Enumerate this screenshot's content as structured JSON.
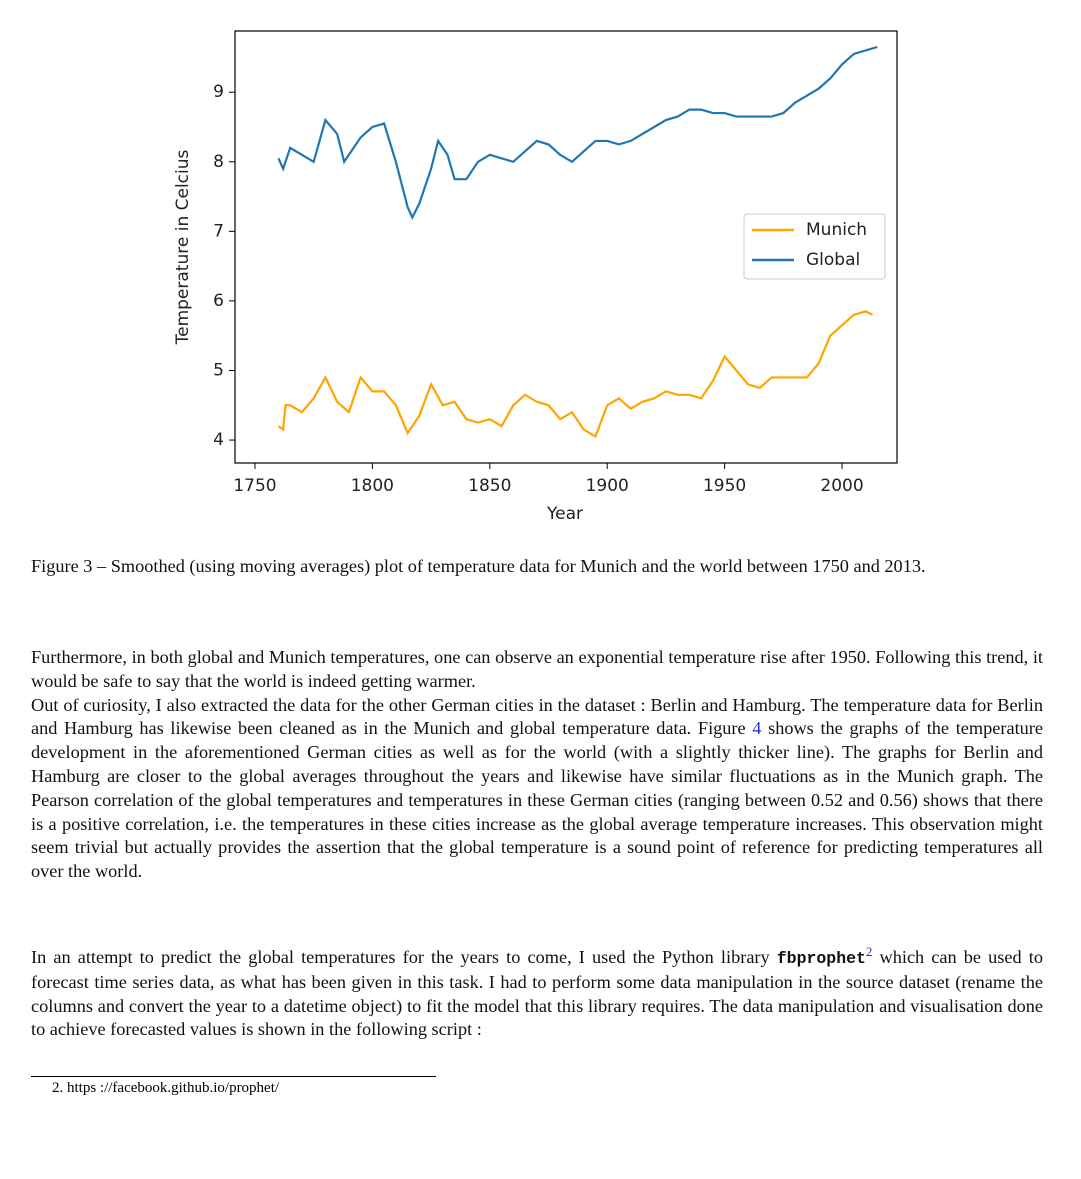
{
  "chart_data": {
    "type": "line",
    "x_label": "Year",
    "y_label": "Temperature in Celcius",
    "xlim": [
      1741.5,
      2023.4
    ],
    "ylim": [
      3.67,
      9.88
    ],
    "xticks": [
      1750,
      1800,
      1850,
      1900,
      1950,
      2000
    ],
    "yticks": [
      4,
      5,
      6,
      7,
      8,
      9
    ],
    "legend": "upper right",
    "series": [
      {
        "name": "Munich",
        "color": "#ffa500",
        "x": [
          1760,
          1762,
          1763,
          1765,
          1770,
          1775,
          1780,
          1785,
          1790,
          1795,
          1800,
          1805,
          1810,
          1815,
          1820,
          1825,
          1830,
          1835,
          1840,
          1845,
          1850,
          1855,
          1860,
          1865,
          1870,
          1875,
          1880,
          1885,
          1890,
          1895,
          1900,
          1905,
          1910,
          1915,
          1920,
          1925,
          1930,
          1935,
          1940,
          1945,
          1950,
          1955,
          1960,
          1965,
          1970,
          1975,
          1980,
          1985,
          1990,
          1995,
          2000,
          2005,
          2010,
          2013
        ],
        "values": [
          4.2,
          4.15,
          4.5,
          4.5,
          4.4,
          4.6,
          4.9,
          4.55,
          4.4,
          4.9,
          4.7,
          4.7,
          4.5,
          4.1,
          4.35,
          4.8,
          4.5,
          4.55,
          4.3,
          4.25,
          4.3,
          4.2,
          4.5,
          4.65,
          4.55,
          4.5,
          4.3,
          4.4,
          4.15,
          4.05,
          4.5,
          4.6,
          4.45,
          4.55,
          4.6,
          4.7,
          4.65,
          4.65,
          4.6,
          4.85,
          5.2,
          5.0,
          4.8,
          4.75,
          4.9,
          4.9,
          4.9,
          4.9,
          5.1,
          5.5,
          5.65,
          5.8,
          5.85,
          5.8
        ]
      },
      {
        "name": "Global",
        "color": "#1f77b4",
        "x": [
          1760,
          1762,
          1765,
          1770,
          1775,
          1780,
          1785,
          1788,
          1792,
          1795,
          1800,
          1805,
          1810,
          1815,
          1817,
          1820,
          1825,
          1828,
          1832,
          1835,
          1840,
          1845,
          1850,
          1855,
          1860,
          1865,
          1870,
          1875,
          1880,
          1885,
          1890,
          1895,
          1900,
          1905,
          1910,
          1915,
          1920,
          1925,
          1930,
          1935,
          1940,
          1945,
          1950,
          1955,
          1960,
          1965,
          1970,
          1975,
          1980,
          1985,
          1990,
          1995,
          2000,
          2005,
          2010,
          2015
        ],
        "values": [
          8.05,
          7.9,
          8.2,
          8.1,
          8.0,
          8.6,
          8.4,
          8.0,
          8.2,
          8.35,
          8.5,
          8.55,
          8.0,
          7.35,
          7.2,
          7.4,
          7.9,
          8.3,
          8.1,
          7.75,
          7.75,
          8.0,
          8.1,
          8.05,
          8.0,
          8.15,
          8.3,
          8.25,
          8.1,
          8.0,
          8.15,
          8.3,
          8.3,
          8.25,
          8.3,
          8.4,
          8.5,
          8.6,
          8.65,
          8.75,
          8.75,
          8.7,
          8.7,
          8.65,
          8.65,
          8.65,
          8.65,
          8.7,
          8.85,
          8.95,
          9.05,
          9.2,
          9.4,
          9.55,
          9.6,
          9.65
        ]
      }
    ]
  },
  "document": {
    "caption": "Figure 3 – Smoothed (using moving averages) plot of temperature data for Munich and the world between 1750 and 2013.",
    "paragraph_1": {
      "text_1": "Furthermore, in both global and Munich temperatures, one can observe an exponential temperature rise after 1950. Following this trend, it would be safe to say that the world is indeed getting warmer.",
      "text_2": "Out of curiosity, I also extracted the data for the other German cities in the dataset : Berlin and Hamburg. The temperature data for Berlin and Hamburg has likewise been cleaned as in the Munich and global temperature data. Figure ",
      "figure_ref": "4",
      "text_3": " shows the graphs of the temperature development in the aforementioned German cities as well as for the world (with a slightly thicker line). The graphs for Berlin and Hamburg are closer to the global averages throughout the years and likewise have similar fluctuations as in the Munich graph. The Pearson correlation of the global temperatures and temperatures in these German cities (ranging between 0.52 and 0.56) shows that there is a positive correlation, i.e. the temperatures in these cities increase as the global average temperature increases. This observation might seem trivial but actually provides the assertion that the global temperature is a sound point of reference for predicting temperatures all over the world."
    },
    "paragraph_2": {
      "text_1": "In an attempt to predict the global temperatures for the years to come, I used the Python library ",
      "code": "fbprophet",
      "footnote_mark": "2",
      "text_2": " which can be used to forecast time series data, as what has been given in this task. I had to perform some data manipulation in the source dataset (rename the columns and convert the year to a datetime object) to fit the model that this library requires. The data manipulation and visualisation done to achieve forecasted values is shown in the following script :"
    },
    "footnote": {
      "number": "2.",
      "text": "https ://facebook.github.io/prophet/"
    }
  }
}
